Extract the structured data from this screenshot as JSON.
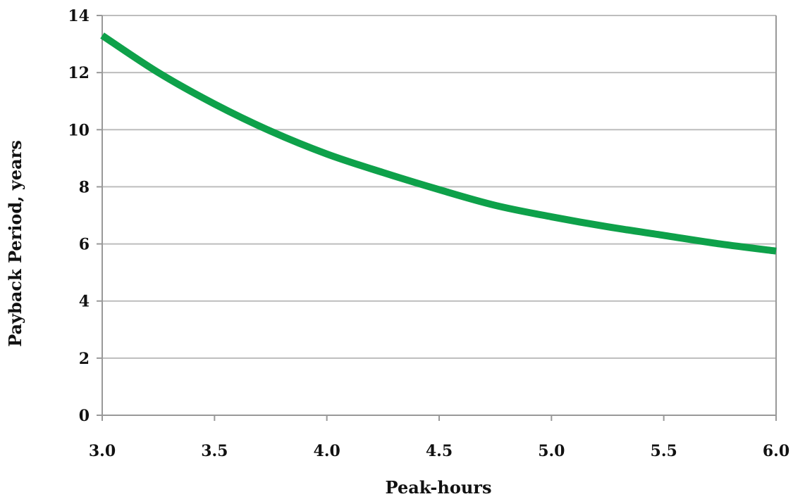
{
  "chart_data": {
    "type": "line",
    "title": "",
    "xlabel": "Peak-hours",
    "ylabel": "Payback Period, years",
    "xlim": [
      3.0,
      6.0
    ],
    "ylim": [
      0,
      14
    ],
    "x_ticks": [
      "3.0",
      "3.5",
      "4.0",
      "4.5",
      "5.0",
      "5.5",
      "6.0"
    ],
    "y_ticks": [
      "0",
      "2",
      "4",
      "6",
      "8",
      "10",
      "12",
      "14"
    ],
    "grid": "horizontal",
    "legend": "none",
    "series": [
      {
        "color": "#0ea14a",
        "x": [
          3.0,
          3.25,
          3.5,
          3.75,
          4.0,
          4.25,
          4.5,
          4.75,
          5.0,
          5.25,
          5.5,
          5.75,
          6.0
        ],
        "y": [
          13.3,
          12.0,
          10.9,
          9.95,
          9.15,
          8.5,
          7.9,
          7.35,
          6.95,
          6.6,
          6.3,
          6.0,
          5.75
        ]
      }
    ]
  }
}
